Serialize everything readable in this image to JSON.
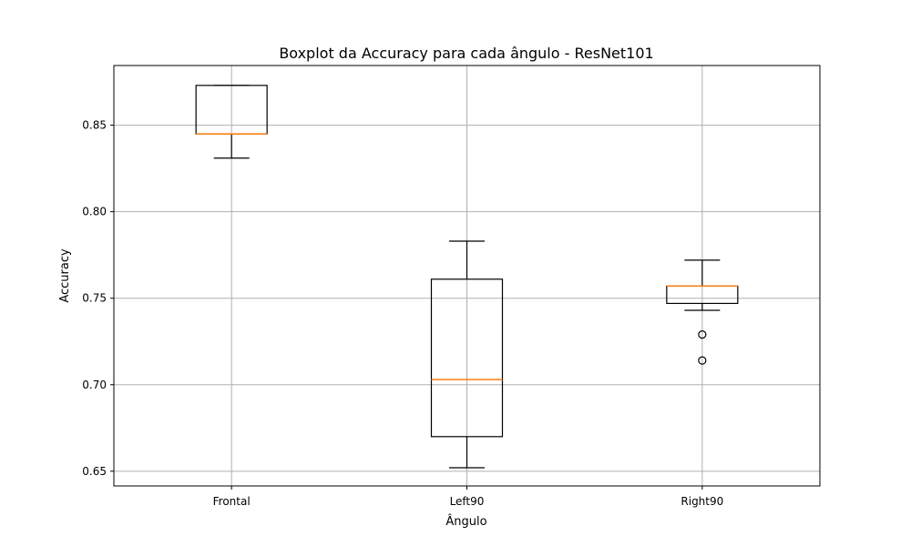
{
  "chart_data": {
    "type": "boxplot",
    "title": "Boxplot da Accuracy para cada ângulo - ResNet101",
    "xlabel": "Ângulo",
    "ylabel": "Accuracy",
    "ylim": [
      0.6415,
      0.8845
    ],
    "yticks": [
      0.65,
      0.7,
      0.75,
      0.8,
      0.85
    ],
    "ytick_labels": [
      "0.65",
      "0.70",
      "0.75",
      "0.80",
      "0.85"
    ],
    "grid": true,
    "categories": [
      "Frontal",
      "Left90",
      "Right90"
    ],
    "boxes": [
      {
        "category": "Frontal",
        "whisker_low": 0.831,
        "q1": 0.845,
        "median": 0.845,
        "q3": 0.873,
        "whisker_high": 0.873,
        "outliers": []
      },
      {
        "category": "Left90",
        "whisker_low": 0.652,
        "q1": 0.67,
        "median": 0.703,
        "q3": 0.761,
        "whisker_high": 0.783,
        "outliers": []
      },
      {
        "category": "Right90",
        "whisker_low": 0.743,
        "q1": 0.747,
        "median": 0.757,
        "q3": 0.757,
        "whisker_high": 0.772,
        "outliers": [
          0.729,
          0.714
        ]
      }
    ],
    "colors": {
      "box": "#000000",
      "median": "#ff7f0e",
      "grid": "#b0b0b0",
      "outlier_edge": "#000000"
    }
  }
}
